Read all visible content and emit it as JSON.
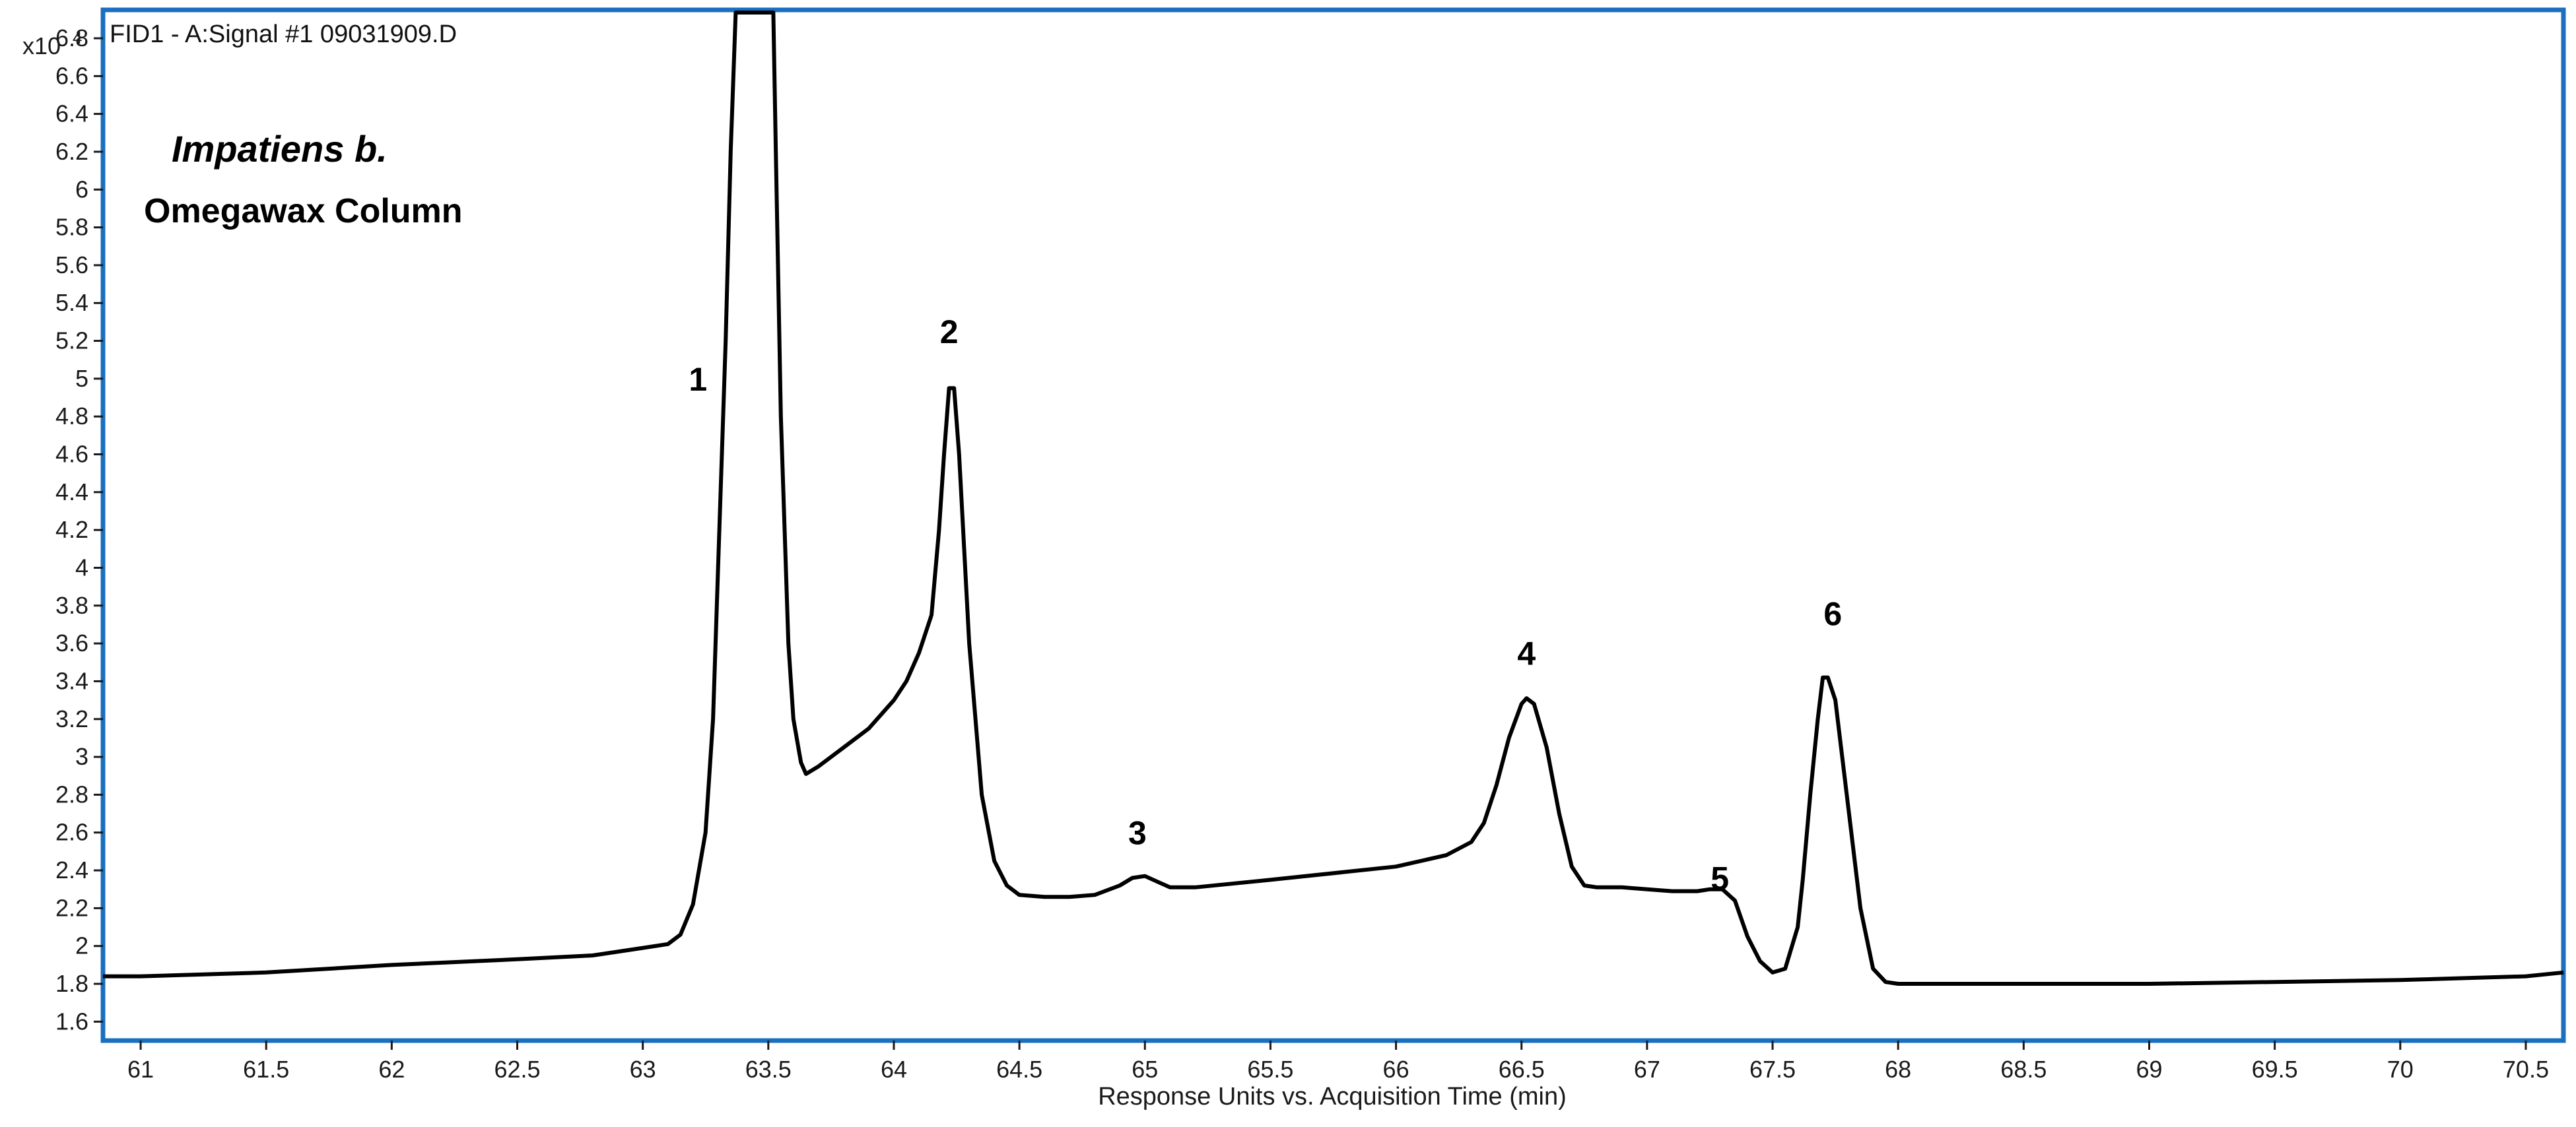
{
  "chart_data": {
    "type": "line",
    "signal_title": "FID1 - A:Signal #1 09031909.D",
    "xlabel": "Response Units vs. Acquisition Time (min)",
    "y_multiplier_base": "x10",
    "y_multiplier_exp": "4",
    "xlim": [
      60.85,
      70.65
    ],
    "ylim": [
      1.5,
      6.95
    ],
    "x_ticks": [
      61,
      61.5,
      62,
      62.5,
      63,
      63.5,
      64,
      64.5,
      65,
      65.5,
      66,
      66.5,
      67,
      67.5,
      68,
      68.5,
      69,
      69.5,
      70,
      70.5
    ],
    "x_tick_labels": [
      "61",
      "61.5",
      "62",
      "62.5",
      "63",
      "63.5",
      "64",
      "64.5",
      "65",
      "65.5",
      "66",
      "66.5",
      "67",
      "67.5",
      "68",
      "68.5",
      "69",
      "69.5",
      "70",
      "70.5"
    ],
    "y_ticks": [
      1.6,
      1.8,
      2,
      2.2,
      2.4,
      2.6,
      2.8,
      3,
      3.2,
      3.4,
      3.6,
      3.8,
      4,
      4.2,
      4.4,
      4.6,
      4.8,
      5,
      5.2,
      5.4,
      5.6,
      5.8,
      6,
      6.2,
      6.4,
      6.6,
      6.8
    ],
    "y_tick_labels": [
      "1.6",
      "1.8",
      "2",
      "2.2",
      "2.4",
      "2.6",
      "2.8",
      "3",
      "3.2",
      "3.4",
      "3.6",
      "3.8",
      "4",
      "4.2",
      "4.4",
      "4.6",
      "4.8",
      "5",
      "5.2",
      "5.4",
      "5.6",
      "5.8",
      "6",
      "6.2",
      "6.4",
      "6.6",
      "6.8"
    ],
    "annotations": [
      {
        "text": "Impatiens b.",
        "style": "italic"
      },
      {
        "text": "Omegawax Column",
        "style": "bold"
      }
    ],
    "peaks": [
      {
        "label": "1",
        "x": 63.22,
        "y": 5.0
      },
      {
        "label": "2",
        "x": 64.22,
        "y": 5.25
      },
      {
        "label": "3",
        "x": 64.97,
        "y": 2.6
      },
      {
        "label": "4",
        "x": 66.52,
        "y": 3.55
      },
      {
        "label": "5",
        "x": 67.29,
        "y": 2.36
      },
      {
        "label": "6",
        "x": 67.74,
        "y": 3.76
      }
    ],
    "series": [
      {
        "x": [
          60.85,
          61.0,
          61.5,
          62.0,
          62.5,
          62.8,
          63.0,
          63.1,
          63.15,
          63.2,
          63.25,
          63.28,
          63.3,
          63.33,
          63.35,
          63.37,
          63.38,
          63.4,
          63.5,
          63.52,
          63.53,
          63.55,
          63.58,
          63.6,
          63.63,
          63.65,
          63.7,
          63.8,
          63.9,
          64.0,
          64.05,
          64.1,
          64.15,
          64.18,
          64.2,
          64.22,
          64.24,
          64.26,
          64.3,
          64.35,
          64.4,
          64.45,
          64.5,
          64.6,
          64.7,
          64.8,
          64.9,
          64.95,
          65.0,
          65.05,
          65.1,
          65.2,
          65.5,
          66.0,
          66.2,
          66.3,
          66.35,
          66.4,
          66.45,
          66.5,
          66.52,
          66.55,
          66.6,
          66.65,
          66.7,
          66.75,
          66.8,
          66.9,
          67.0,
          67.1,
          67.2,
          67.25,
          67.3,
          67.35,
          67.4,
          67.45,
          67.5,
          67.55,
          67.6,
          67.62,
          67.65,
          67.68,
          67.7,
          67.72,
          67.75,
          67.8,
          67.85,
          67.9,
          67.95,
          68.0,
          68.5,
          69.0,
          69.5,
          70.0,
          70.5,
          70.65
        ],
        "y": [
          1.84,
          1.84,
          1.86,
          1.9,
          1.93,
          1.95,
          1.99,
          2.01,
          2.06,
          2.22,
          2.6,
          3.2,
          4.0,
          5.2,
          6.2,
          6.95,
          6.95,
          6.95,
          6.95,
          6.95,
          6.2,
          4.8,
          3.6,
          3.2,
          2.97,
          2.91,
          2.95,
          3.05,
          3.15,
          3.3,
          3.4,
          3.55,
          3.75,
          4.2,
          4.6,
          4.95,
          4.95,
          4.6,
          3.6,
          2.8,
          2.45,
          2.32,
          2.27,
          2.26,
          2.26,
          2.27,
          2.32,
          2.36,
          2.37,
          2.34,
          2.31,
          2.31,
          2.35,
          2.42,
          2.48,
          2.55,
          2.65,
          2.85,
          3.1,
          3.28,
          3.31,
          3.28,
          3.05,
          2.7,
          2.42,
          2.32,
          2.31,
          2.31,
          2.3,
          2.29,
          2.29,
          2.3,
          2.3,
          2.24,
          2.05,
          1.92,
          1.86,
          1.88,
          2.1,
          2.35,
          2.8,
          3.2,
          3.42,
          3.42,
          3.3,
          2.75,
          2.2,
          1.88,
          1.81,
          1.8,
          1.8,
          1.8,
          1.81,
          1.82,
          1.84,
          1.86
        ]
      }
    ]
  }
}
